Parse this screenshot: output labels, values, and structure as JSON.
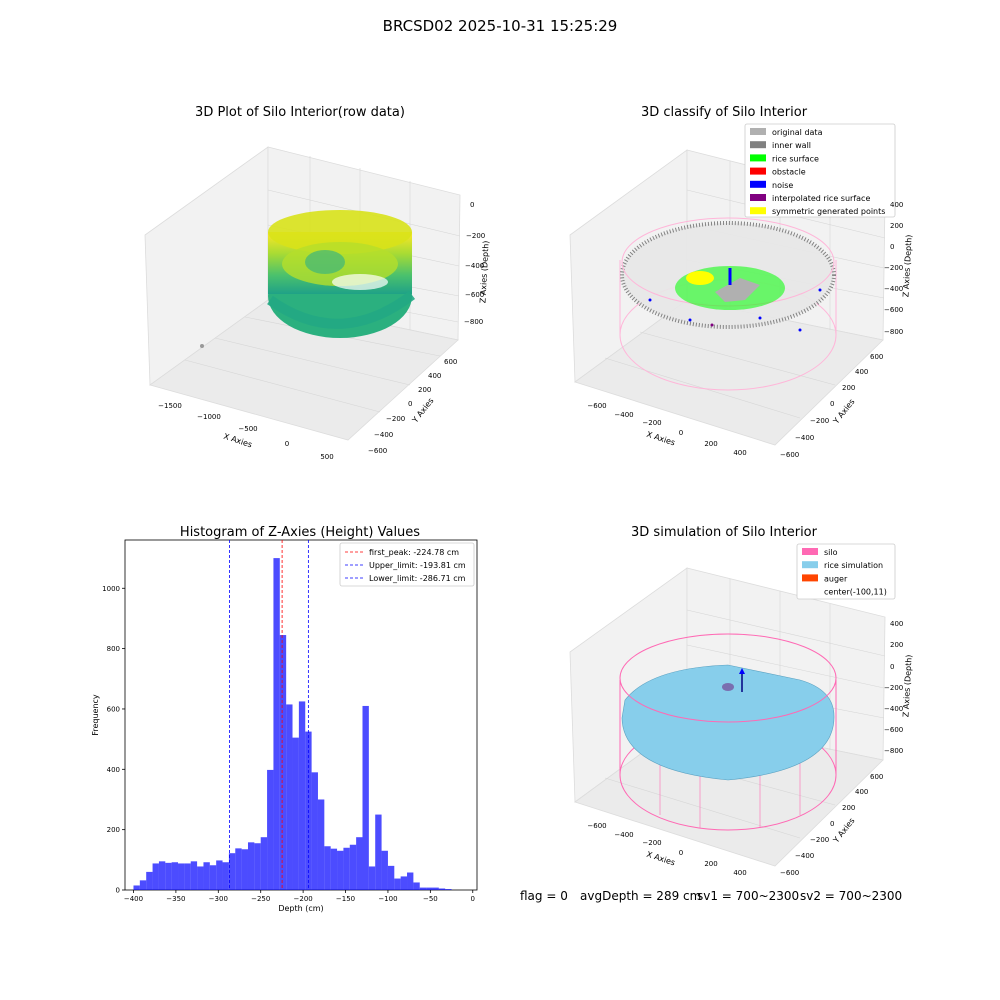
{
  "figure": {
    "suptitle": "BRCSD02 2025-10-31 15:25:29",
    "status": {
      "flag": "flag = 0",
      "avg_depth": "avgDepth = 289 cm",
      "sv1": "sv1 = 700~2300",
      "sv2": "sv2 = 700~2300"
    }
  },
  "chart_data": [
    {
      "type": "scatter",
      "projection": "3d",
      "title": "3D Plot of Silo Interior(row data)",
      "xlabel": "X Axies",
      "ylabel": "Y Axies",
      "zlabel": "Z Axies (Depth)",
      "x_ticks": [
        "−1500",
        "−1000",
        "−500",
        "0",
        "500"
      ],
      "y_ticks": [
        "−600",
        "−400",
        "−200",
        "0",
        "200",
        "400",
        "600"
      ],
      "z_ticks": [
        "0",
        "−200",
        "−400",
        "−600",
        "−800"
      ],
      "colormap": "viridis",
      "grid": true
    },
    {
      "type": "scatter",
      "projection": "3d",
      "title": "3D classify of Silo Interior",
      "xlabel": "X Axies",
      "ylabel": "Y Axies",
      "zlabel": "Z Axies (Depth)",
      "x_ticks": [
        "−600",
        "−400",
        "−200",
        "0",
        "200",
        "400"
      ],
      "y_ticks": [
        "−600",
        "−400",
        "−200",
        "0",
        "200",
        "400",
        "600"
      ],
      "z_ticks": [
        "400",
        "200",
        "0",
        "−200",
        "−400",
        "−600",
        "−800"
      ],
      "legend_position": "top-right",
      "legend": [
        {
          "label": "original data",
          "color": "#b0b0b0"
        },
        {
          "label": "inner wall",
          "color": "#808080"
        },
        {
          "label": "rice surface",
          "color": "#00ff00"
        },
        {
          "label": "obstacle",
          "color": "#ff0000"
        },
        {
          "label": "noise",
          "color": "#0000ff"
        },
        {
          "label": "interpolated rice surface",
          "color": "#800080"
        },
        {
          "label": "symmetric generated points",
          "color": "#ffff00"
        }
      ],
      "grid": true
    },
    {
      "type": "bar",
      "title": "Histogram of Z-Axies (Height) Values",
      "xlabel": "Depth (cm)",
      "ylabel": "Frequency",
      "xlim": [
        -410,
        5
      ],
      "ylim": [
        0,
        1160
      ],
      "x_ticks": [
        -400,
        -350,
        -300,
        -250,
        -200,
        -150,
        -100,
        -50,
        0
      ],
      "x_tick_labels": [
        "−400",
        "−350",
        "−300",
        "−250",
        "−200",
        "−150",
        "−100",
        "−50",
        "0"
      ],
      "y_ticks": [
        0,
        200,
        400,
        600,
        800,
        1000
      ],
      "bin_start": -400,
      "bin_width": 7.5,
      "values": [
        15,
        32,
        60,
        88,
        95,
        90,
        92,
        88,
        88,
        95,
        78,
        92,
        82,
        98,
        92,
        122,
        138,
        135,
        158,
        155,
        175,
        398,
        1100,
        845,
        615,
        505,
        625,
        525,
        390,
        300,
        145,
        137,
        130,
        140,
        150,
        175,
        610,
        78,
        250,
        130,
        80,
        38,
        45,
        58,
        25,
        8,
        8,
        8,
        5,
        3
      ],
      "bar_color": "#0000ff",
      "vlines": [
        {
          "x": -224.78,
          "label": "first_peak: -224.78 cm",
          "color": "#ff0000"
        },
        {
          "x": -193.81,
          "label": "Upper_limit: -193.81 cm",
          "color": "#0000ff"
        },
        {
          "x": -286.71,
          "label": "Lower_limit: -286.71 cm",
          "color": "#0000ff"
        }
      ],
      "legend_position": "top-right",
      "grid": false
    },
    {
      "type": "scatter",
      "projection": "3d",
      "title": "3D simulation of Silo Interior",
      "xlabel": "X Axies",
      "ylabel": "Y Axies",
      "zlabel": "Z Axies (Depth)",
      "x_ticks": [
        "−600",
        "−400",
        "−200",
        "0",
        "200",
        "400"
      ],
      "y_ticks": [
        "−600",
        "−400",
        "−200",
        "0",
        "200",
        "400",
        "600"
      ],
      "z_ticks": [
        "400",
        "200",
        "0",
        "−200",
        "−400",
        "−600",
        "−800"
      ],
      "legend_position": "top-right",
      "legend": [
        {
          "label": "silo",
          "color": "#ff69b4"
        },
        {
          "label": "rice simulation",
          "color": "#87ceeb"
        },
        {
          "label": "auger",
          "color": "#ff4500"
        },
        {
          "label": "center(-100,11)",
          "color": "none"
        }
      ],
      "grid": true
    }
  ]
}
